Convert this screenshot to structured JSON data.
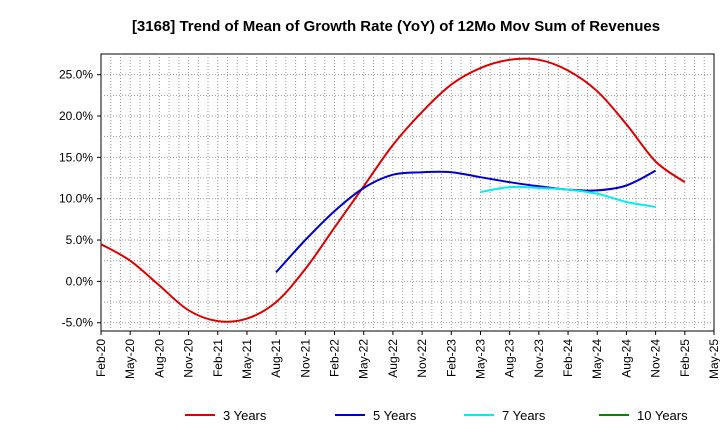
{
  "chart_data": {
    "type": "line",
    "title": "[3168]  Trend of Mean of Growth Rate (YoY) of 12Mo Mov Sum of Revenues",
    "xlabel": "",
    "ylabel": "",
    "ylim": [
      -6.0,
      27.5
    ],
    "grid": true,
    "legend_position": "bottom",
    "y_ticks": [
      {
        "value": 25,
        "label": "25.0%"
      },
      {
        "value": 20,
        "label": "20.0%"
      },
      {
        "value": 15,
        "label": "15.0%"
      },
      {
        "value": 10,
        "label": "10.0%"
      },
      {
        "value": 5,
        "label": "5.0%"
      },
      {
        "value": 0,
        "label": "0.0%"
      },
      {
        "value": -5,
        "label": "-5.0%"
      }
    ],
    "x_ticks": [
      "Feb-20",
      "May-20",
      "Aug-20",
      "Nov-20",
      "Feb-21",
      "May-21",
      "Aug-21",
      "Nov-21",
      "Feb-22",
      "May-22",
      "Aug-22",
      "Nov-22",
      "Feb-23",
      "May-23",
      "Aug-23",
      "Nov-23",
      "Feb-24",
      "May-24",
      "Aug-24",
      "Nov-24",
      "Feb-25",
      "May-25"
    ],
    "series": [
      {
        "name": "3 Years",
        "color": "#dd0000",
        "points": [
          [
            0,
            4.5
          ],
          [
            1,
            2.5
          ],
          [
            2,
            -0.5
          ],
          [
            3,
            -3.5
          ],
          [
            4,
            -4.8
          ],
          [
            5,
            -4.5
          ],
          [
            6,
            -2.5
          ],
          [
            7,
            1.5
          ],
          [
            8,
            6.5
          ],
          [
            9,
            11.5
          ],
          [
            10,
            16.5
          ],
          [
            11,
            20.5
          ],
          [
            12,
            23.8
          ],
          [
            13,
            25.8
          ],
          [
            14,
            26.8
          ],
          [
            15,
            26.8
          ],
          [
            16,
            25.5
          ],
          [
            17,
            23.0
          ],
          [
            18,
            19.0
          ],
          [
            19,
            14.5
          ],
          [
            20,
            12.0
          ]
        ]
      },
      {
        "name": "5 Years",
        "color": "#0000cc",
        "points": [
          [
            6,
            1.1
          ],
          [
            7,
            5.0
          ],
          [
            8,
            8.5
          ],
          [
            9,
            11.3
          ],
          [
            10,
            12.9
          ],
          [
            11,
            13.2
          ],
          [
            12,
            13.2
          ],
          [
            13,
            12.6
          ],
          [
            14,
            12.0
          ],
          [
            15,
            11.5
          ],
          [
            16,
            11.1
          ],
          [
            17,
            11.0
          ],
          [
            18,
            11.6
          ],
          [
            19,
            13.4
          ]
        ]
      },
      {
        "name": "7 Years",
        "color": "#00eeee",
        "points": [
          [
            13,
            10.8
          ],
          [
            14,
            11.4
          ],
          [
            15,
            11.3
          ],
          [
            16,
            11.1
          ],
          [
            17,
            10.6
          ],
          [
            18,
            9.6
          ],
          [
            19,
            9.0
          ]
        ]
      },
      {
        "name": "10 Years",
        "color": "#008800",
        "points": []
      }
    ]
  }
}
